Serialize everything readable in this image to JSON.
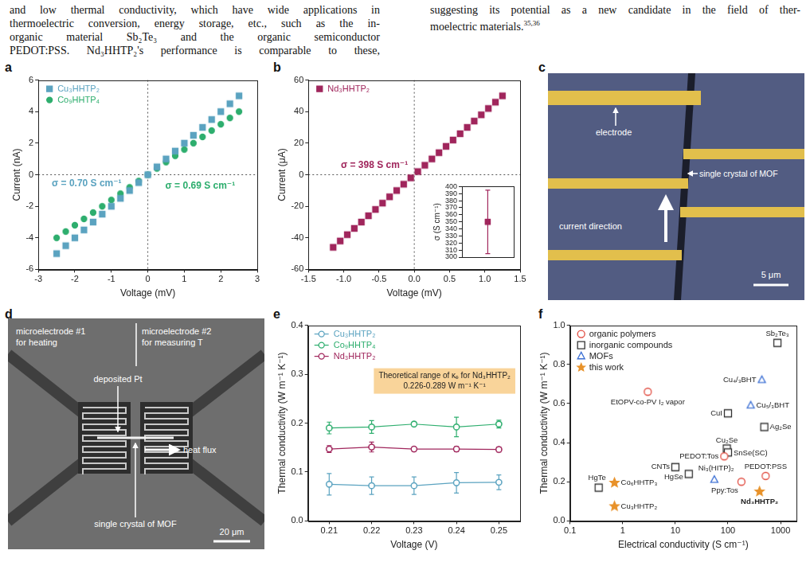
{
  "text": {
    "left": [
      "and low thermal conductivity, which have wide applications in",
      "thermoelectric conversion, energy storage, etc., such as the in-",
      "organic material Sb₂Te₃ and the organic semiconductor",
      "PEDOT:PSS. Nd₃HHTP₂'s performance is comparable to these,"
    ],
    "right": [
      "suggesting its potential as a new candidate in the field of ther-",
      "moelectric materials."
    ],
    "right_refs": "35,36"
  },
  "chart_data": [
    {
      "panel": "a",
      "type": "scatter",
      "x_label": "Voltage (mV)",
      "y_label": "Current (nA)",
      "x": [
        -2.5,
        -2.25,
        -2,
        -1.75,
        -1.5,
        -1.25,
        -1,
        -0.75,
        -0.5,
        -0.25,
        0,
        0.25,
        0.5,
        0.75,
        1,
        1.25,
        1.5,
        1.75,
        2,
        2.25,
        2.5
      ],
      "series": [
        {
          "name": "Cu₃HHTP₂",
          "color": "#5ba3c0",
          "marker": "square",
          "values": [
            -5,
            -4.5,
            -4,
            -3.5,
            -3,
            -2.5,
            -2,
            -1.5,
            -1,
            -0.5,
            0,
            0.5,
            1,
            1.5,
            2,
            2.5,
            3,
            3.5,
            4,
            4.5,
            5
          ]
        },
        {
          "name": "Co₉HHTP₄",
          "color": "#2eae6e",
          "marker": "circle",
          "values": [
            -4,
            -3.6,
            -3.2,
            -2.8,
            -2.4,
            -2,
            -1.6,
            -1.2,
            -0.8,
            -0.4,
            0,
            0.4,
            0.8,
            1.2,
            1.6,
            2,
            2.4,
            2.8,
            3.2,
            3.6,
            4
          ]
        }
      ],
      "xlim": [
        -3,
        3
      ],
      "xticks": [
        -3,
        -2,
        -1,
        0,
        1,
        2,
        3
      ],
      "ylim": [
        -6,
        6
      ],
      "yticks": [
        -6,
        -4,
        -2,
        0,
        2,
        4,
        6
      ],
      "ref_lines": {
        "x": [
          0
        ],
        "y": [
          0
        ]
      },
      "annotations": [
        {
          "text": "σ = 0.70 S cm⁻¹",
          "color": "#5ba3c0"
        },
        {
          "text": "σ = 0.69 S cm⁻¹",
          "color": "#2eae6e"
        }
      ],
      "legend": "upper left",
      "grid": false
    },
    {
      "panel": "b",
      "type": "scatter",
      "x_label": "Voltage (mV)",
      "y_label": "Current (μA)",
      "x": [
        -1.15,
        -1.05,
        -0.95,
        -0.85,
        -0.75,
        -0.65,
        -0.55,
        -0.45,
        -0.35,
        -0.25,
        -0.15,
        -0.05,
        0.05,
        0.15,
        0.25,
        0.35,
        0.45,
        0.55,
        0.65,
        0.75,
        0.85,
        0.95,
        1.05,
        1.15,
        1.25
      ],
      "series": [
        {
          "name": "Nd₃HHTP₂",
          "color": "#a0265c",
          "marker": "square",
          "values": [
            -46,
            -42,
            -38,
            -34,
            -30,
            -26,
            -22,
            -18,
            -14,
            -10,
            -6,
            -2,
            2,
            6,
            10,
            14,
            18,
            22,
            26,
            30,
            34,
            38,
            42,
            46,
            50
          ]
        }
      ],
      "xlim": [
        -1.5,
        1.5
      ],
      "xticks": [
        -1.5,
        {
          "value": -1,
          "label": "-1.0"
        },
        -0.5,
        {
          "value": 0,
          "label": "0.0"
        },
        0.5,
        {
          "value": 1,
          "label": "1.0"
        },
        1.5
      ],
      "ylim": [
        -60,
        60
      ],
      "yticks": [
        -60,
        -40,
        -20,
        0,
        20,
        40,
        60
      ],
      "ref_lines": {
        "x": [
          0
        ],
        "y": [
          0
        ]
      },
      "annotations": [
        {
          "text": "σ = 398 S cm⁻¹",
          "color": "#a0265c"
        }
      ],
      "legend": "upper left",
      "grid": false,
      "inset": {
        "type": "scatter",
        "categories": [
          null
        ],
        "series": [
          {
            "color": "#a0265c",
            "marker": "square",
            "values": [
              350
            ],
            "errors": [
              45
            ]
          }
        ],
        "y_label": "σ (S cm⁻¹)",
        "ylim": [
          300,
          400
        ],
        "yticks": [
          300,
          310,
          320,
          330,
          340,
          350,
          360,
          370,
          380,
          390,
          400
        ],
        "tick_labels": "y",
        "grid": false
      }
    },
    {
      "panel": "e",
      "type": "line",
      "x_label": "Voltage (V)",
      "y_label": "Thermal conductivity (W m⁻¹ K⁻¹)",
      "x": [
        0.21,
        0.22,
        0.23,
        0.24,
        0.25
      ],
      "series": [
        {
          "name": "Cu₃HHTP₂",
          "color": "#5ba3c0",
          "marker": "open_circle",
          "line_style": "solid",
          "values": [
            0.075,
            0.072,
            0.072,
            0.078,
            0.079
          ],
          "errors": [
            0.022,
            0.018,
            0.018,
            0.021,
            0.015
          ]
        },
        {
          "name": "Co₉HHTP₄",
          "color": "#2eae6e",
          "marker": "open_circle",
          "line_style": "solid",
          "values": [
            0.19,
            0.192,
            0.198,
            0.192,
            0.198
          ],
          "errors": [
            0.012,
            0.013,
            0.004,
            0.02,
            0.008
          ]
        },
        {
          "name": "Nd₃HHTP₂",
          "color": "#a0265c",
          "marker": "open_circle",
          "line_style": "solid",
          "values": [
            0.147,
            0.151,
            0.147,
            0.147,
            0.146
          ],
          "errors": [
            0.007,
            0.01,
            0.004,
            0.005,
            0.005
          ]
        }
      ],
      "xlim": [
        0.205,
        0.255
      ],
      "xticks": [
        0.21,
        0.22,
        0.23,
        0.24,
        0.25
      ],
      "ylim": [
        0,
        0.4
      ],
      "yticks": [
        {
          "value": 0,
          "label": "0.0"
        },
        0.1,
        0.2,
        0.3,
        0.4
      ],
      "annotations": [
        {
          "text": [
            "Theoretical range of κₑ for Nd₃HHTP₂",
            "0.226-0.289 W m⁻¹ K⁻¹"
          ],
          "color": "#f9d49a"
        }
      ],
      "legend": "upper left",
      "grid": false
    },
    {
      "panel": "f",
      "type": "scatter",
      "log": "x",
      "x_label": "Electrical conductivity (S cm⁻¹)",
      "y_label": "Thermal conductivity (W m⁻¹ K⁻¹)",
      "series": [
        {
          "name": "organic polymers",
          "color": "#e0483c",
          "marker": "open_circle",
          "x": [
            3,
            85,
            180,
            520
          ],
          "values": [
            0.66,
            0.33,
            0.2,
            0.23
          ],
          "labels": [
            "EtOPV-co-PV I₂ vapor",
            "PEDOT:Tos",
            "Ppy:Tos",
            "PEDOT:PSS"
          ]
        },
        {
          "name": "inorganic compounds",
          "color": "#333333",
          "marker": "open_square",
          "x": [
            870,
            100,
            490,
            95,
            100,
            10,
            18,
            0.35
          ],
          "values": [
            0.91,
            0.55,
            0.48,
            0.37,
            0.35,
            0.275,
            0.24,
            0.17
          ],
          "labels": [
            "Sb₂Te₃",
            "CuI",
            "Ag₂Se",
            "Cu₂Se",
            "SnSe(SC)",
            "CNTs",
            "HgSe",
            "HgTe"
          ]
        },
        {
          "name": "MOFs",
          "color": "#3b6fd4",
          "marker": "open_triangle",
          "x": [
            440,
            270,
            55
          ],
          "values": [
            0.72,
            0.59,
            0.21
          ],
          "labels": [
            "Cu₄/₃BHT",
            "Cu₅/₃BHT",
            "Ni₃(HITP)₂"
          ]
        },
        {
          "name": "this work",
          "color": "#e8922a",
          "marker": "star",
          "x": [
            0.7,
            0.7,
            398
          ],
          "values": [
            0.195,
            0.075,
            0.15
          ],
          "labels": [
            "Co₆HHTP₃",
            "Cu₃HHTP₂",
            "Nd₃HHTP₂"
          ]
        }
      ],
      "xlim": [
        0.1,
        2000
      ],
      "xticks": [
        0.1,
        1,
        10,
        100,
        1000
      ],
      "ylim": [
        0,
        1
      ],
      "yticks": [
        {
          "value": 0,
          "label": "0.0"
        },
        0.2,
        0.4,
        0.6,
        0.8,
        {
          "value": 1,
          "label": "1.0"
        }
      ],
      "legend": "upper left",
      "grid": false
    }
  ],
  "images": {
    "c": {
      "panel": "c",
      "electrode": "electrode",
      "crystal": "single crystal of MOF",
      "current": "current direction",
      "scale_bar": "5 μm"
    },
    "d": {
      "panel": "d",
      "heater": [
        "microelectrode #1",
        "for heating"
      ],
      "sensor": [
        "microelectrode #2",
        "for measuring T"
      ],
      "pt": "deposited Pt",
      "flux": "heat flux",
      "crystal": "single crystal of MOF",
      "scale_bar": "20 μm"
    }
  }
}
